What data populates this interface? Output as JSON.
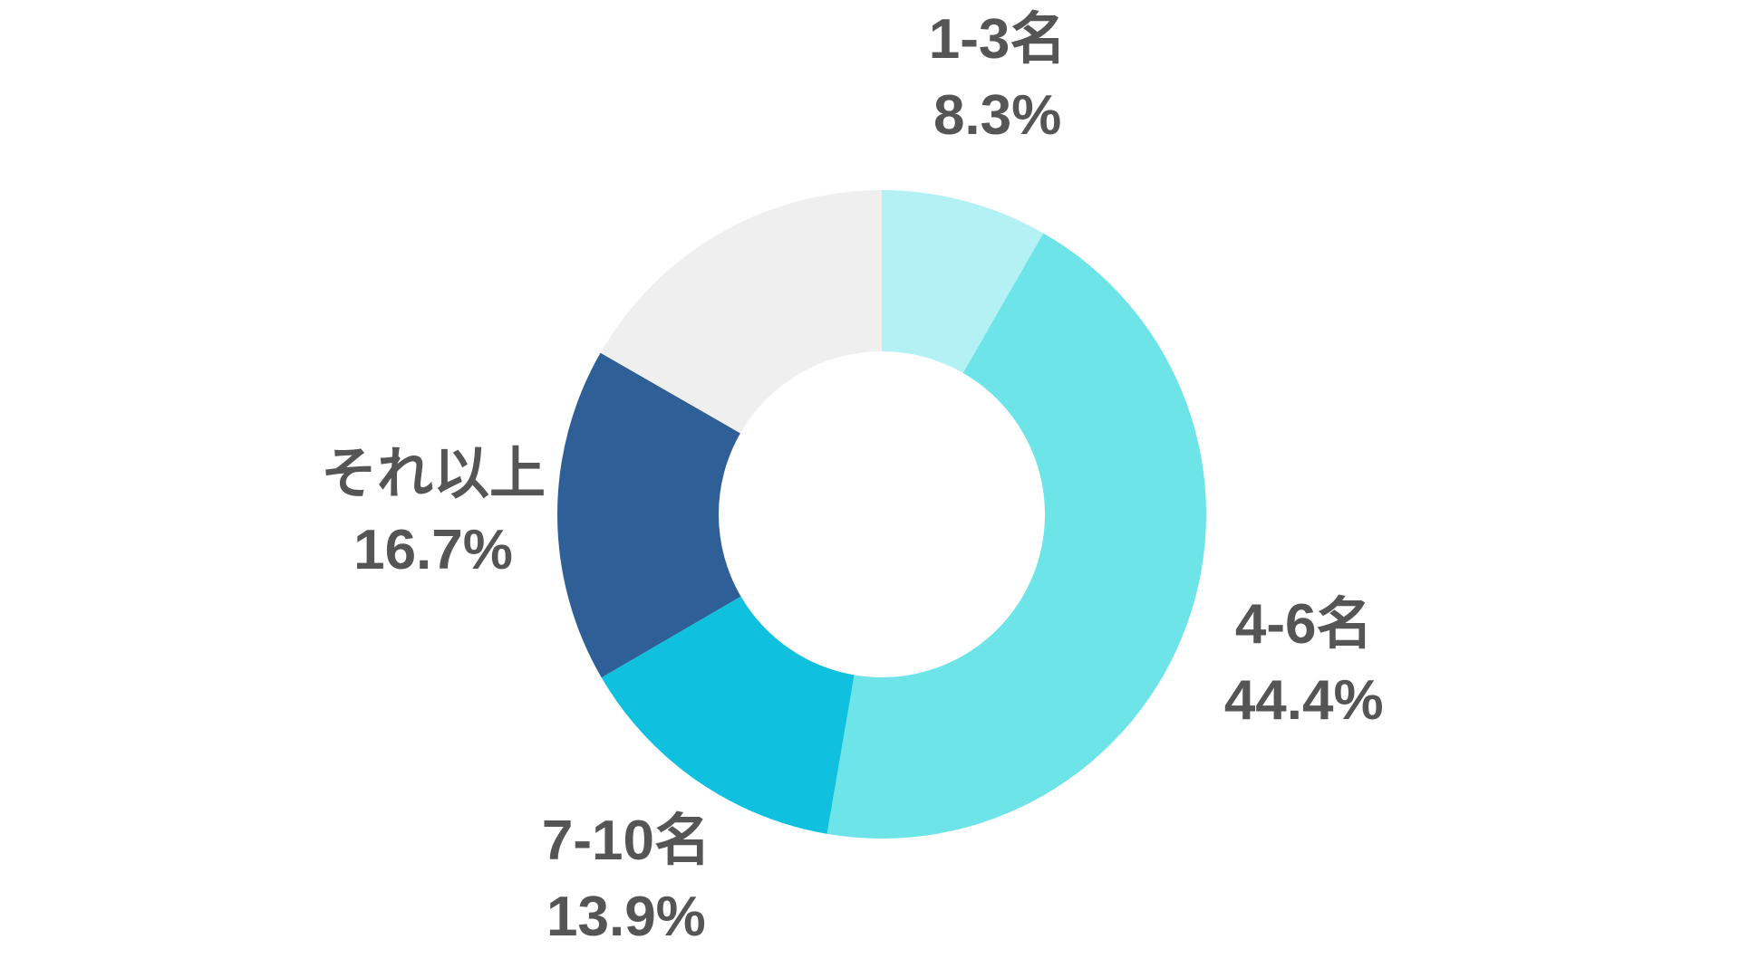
{
  "chart_data": {
    "type": "donut",
    "categories": [
      "1-3名",
      "4-6名",
      "7-10名",
      "それ以上",
      null
    ],
    "values": [
      8.3,
      44.4,
      13.9,
      16.7,
      16.7
    ],
    "value_labels": [
      "8.3%",
      "44.4%",
      "13.9%",
      "16.7%",
      null
    ],
    "colors": [
      "#b3f1f4",
      "#6ce4e8",
      "#0fc1df",
      "#2e5f96",
      "#efefef"
    ]
  }
}
